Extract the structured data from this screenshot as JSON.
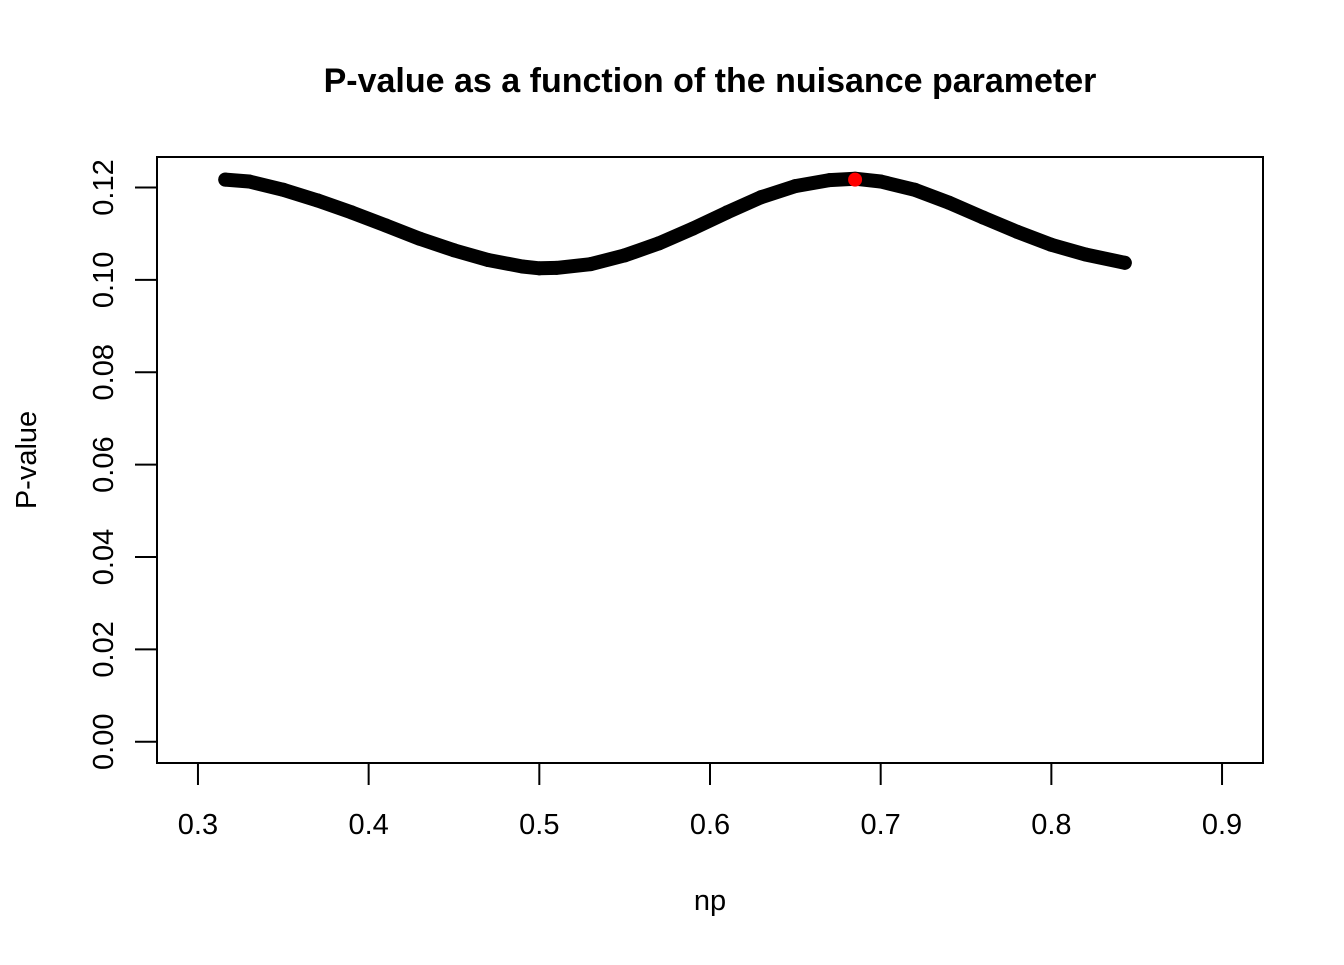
{
  "chart_data": {
    "type": "scatter",
    "title": "P-value as a function of the nuisance parameter",
    "xlabel": "np",
    "ylabel": "P-value",
    "xlim": [
      0.276,
      0.924
    ],
    "ylim": [
      -0.0046,
      0.1266
    ],
    "x_ticks": [
      0.3,
      0.4,
      0.5,
      0.6,
      0.7,
      0.8,
      0.9
    ],
    "x_tick_labels": [
      "0.3",
      "0.4",
      "0.5",
      "0.6",
      "0.7",
      "0.8",
      "0.9"
    ],
    "y_ticks": [
      0.0,
      0.02,
      0.04,
      0.06,
      0.08,
      0.1,
      0.12
    ],
    "y_tick_labels": [
      "0.00",
      "0.02",
      "0.04",
      "0.06",
      "0.08",
      "0.10",
      "0.12"
    ],
    "grid": false,
    "series": [
      {
        "color": "#000000",
        "x": [
          0.316,
          0.33,
          0.35,
          0.37,
          0.39,
          0.41,
          0.43,
          0.45,
          0.47,
          0.49,
          0.5,
          0.51,
          0.53,
          0.55,
          0.57,
          0.59,
          0.61,
          0.63,
          0.65,
          0.67,
          0.685,
          0.7,
          0.72,
          0.74,
          0.76,
          0.78,
          0.8,
          0.82,
          0.843
        ],
        "y": [
          0.1217,
          0.1213,
          0.1195,
          0.1172,
          0.1146,
          0.1118,
          0.1089,
          0.1064,
          0.1043,
          0.1029,
          0.1025,
          0.1026,
          0.1034,
          0.1053,
          0.1079,
          0.1111,
          0.1146,
          0.1179,
          0.1203,
          0.1216,
          0.1219,
          0.1213,
          0.1195,
          0.1167,
          0.1135,
          0.1104,
          0.1076,
          0.1055,
          0.1037
        ]
      },
      {
        "color": "#ff0000",
        "x": [
          0.685
        ],
        "y": [
          0.1217
        ]
      }
    ]
  }
}
